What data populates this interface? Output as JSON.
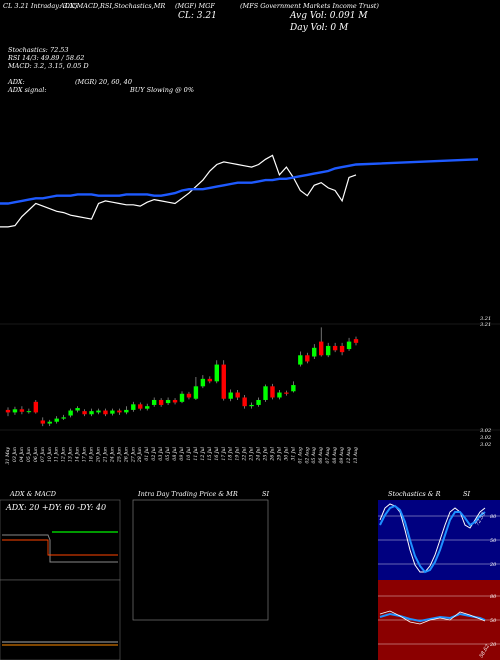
{
  "header": {
    "line1_left": "CL 3.21 Intraday: 3.15",
    "line1_mid1": "ADX,MACD,RSI,Stochastics,MR",
    "line1_mid2": "(MGF) MGF",
    "line1_right": "(MFS Government Markets Income Trust)",
    "close": "CL: 3.21",
    "avg_vol": "Avg Vol: 0.091 M",
    "day_vol": "Day Vol: 0   M",
    "stoch": "Stochastics: 72.53",
    "rsi": "RSI 14/3: 49.89 / 58.62",
    "macd": "MACD: 3.2, 3.15, 0.05 D",
    "adx": "ADX:",
    "adx_signal": "ADX  signal:",
    "mgr": "(MGR) 20, 60, 40",
    "buy_slowing": "BUY Slowing @ 0%"
  },
  "price_labels": {
    "p1": "3.21",
    "p2": "3.21",
    "p3": "3.02",
    "p4": "3.02",
    "p5": "3.02"
  },
  "x_labels": [
    "31 May",
    "03 Jun",
    "04 Jun",
    "05 Jun",
    "06 Jun",
    "07 Jun",
    "10 Jun",
    "11 Jun",
    "12 Jun",
    "13 Jun",
    "14 Jun",
    "17 Jun",
    "18 Jun",
    "20 Jun",
    "21 Jun",
    "24 Jun",
    "25 Jun",
    "26 Jun",
    "27 Jun",
    "28 Jun",
    "01 Jul",
    "02 Jul",
    "03 Jul",
    "05 Jul",
    "08 Jul",
    "09 Jul",
    "10 Jul",
    "11 Jul",
    "12 Jul",
    "15 Jul",
    "16 Jul",
    "17 Jul",
    "18 Jul",
    "19 Jul",
    "22 Jul",
    "23 Jul",
    "24 Jul",
    "25 Jul",
    "26 Jul",
    "29 Jul",
    "30 Jul",
    "31 Jul",
    "01 Aug",
    "02 Aug",
    "05 Aug",
    "06 Aug",
    "07 Aug",
    "08 Aug",
    "09 Aug",
    "12 Aug",
    "13 Aug"
  ],
  "panels": {
    "adx_title": "ADX  & MACD",
    "adx_values": "ADX: 20  +DY: 60  -DY: 40",
    "mr_title": "Intra  Day Trading Price  & MR",
    "mr_si": "SI",
    "stoch_title": "Stochastics & R",
    "stoch_si": "SI",
    "stoch_ticks": [
      "80",
      "50",
      "20"
    ],
    "rsi_ticks": [
      "80",
      "50",
      "20"
    ],
    "stoch_value": "72.53",
    "rsi_value": "58.62"
  },
  "colors": {
    "up": "#00ff00",
    "down": "#ff0000",
    "ma": "#1e5aff",
    "stoch_bg": "#000080",
    "rsi_bg": "#8b0000"
  },
  "chart_data": {
    "type": "candlestick",
    "ylim": [
      3.02,
      3.21
    ],
    "candles": [
      {
        "o": 3.062,
        "c": 3.058,
        "h": 3.066,
        "l": 3.052
      },
      {
        "o": 3.058,
        "c": 3.063,
        "h": 3.067,
        "l": 3.054
      },
      {
        "o": 3.063,
        "c": 3.059,
        "h": 3.068,
        "l": 3.055
      },
      {
        "o": 3.059,
        "c": 3.06,
        "h": 3.064,
        "l": 3.056
      },
      {
        "o": 3.075,
        "c": 3.058,
        "h": 3.078,
        "l": 3.056
      },
      {
        "o": 3.045,
        "c": 3.04,
        "h": 3.05,
        "l": 3.036
      },
      {
        "o": 3.04,
        "c": 3.043,
        "h": 3.046,
        "l": 3.036
      },
      {
        "o": 3.043,
        "c": 3.048,
        "h": 3.052,
        "l": 3.04
      },
      {
        "o": 3.048,
        "c": 3.05,
        "h": 3.054,
        "l": 3.046
      },
      {
        "o": 3.053,
        "c": 3.061,
        "h": 3.064,
        "l": 3.05
      },
      {
        "o": 3.061,
        "c": 3.065,
        "h": 3.068,
        "l": 3.058
      },
      {
        "o": 3.06,
        "c": 3.055,
        "h": 3.063,
        "l": 3.052
      },
      {
        "o": 3.055,
        "c": 3.06,
        "h": 3.064,
        "l": 3.052
      },
      {
        "o": 3.058,
        "c": 3.061,
        "h": 3.064,
        "l": 3.055
      },
      {
        "o": 3.061,
        "c": 3.055,
        "h": 3.064,
        "l": 3.052
      },
      {
        "o": 3.056,
        "c": 3.061,
        "h": 3.064,
        "l": 3.053
      },
      {
        "o": 3.061,
        "c": 3.058,
        "h": 3.064,
        "l": 3.054
      },
      {
        "o": 3.058,
        "c": 3.062,
        "h": 3.068,
        "l": 3.055
      },
      {
        "o": 3.062,
        "c": 3.071,
        "h": 3.075,
        "l": 3.059
      },
      {
        "o": 3.071,
        "c": 3.064,
        "h": 3.074,
        "l": 3.061
      },
      {
        "o": 3.064,
        "c": 3.068,
        "h": 3.072,
        "l": 3.061
      },
      {
        "o": 3.07,
        "c": 3.078,
        "h": 3.082,
        "l": 3.067
      },
      {
        "o": 3.078,
        "c": 3.07,
        "h": 3.081,
        "l": 3.067
      },
      {
        "o": 3.073,
        "c": 3.078,
        "h": 3.082,
        "l": 3.07
      },
      {
        "o": 3.078,
        "c": 3.074,
        "h": 3.081,
        "l": 3.071
      },
      {
        "o": 3.075,
        "c": 3.088,
        "h": 3.092,
        "l": 3.073
      },
      {
        "o": 3.088,
        "c": 3.082,
        "h": 3.091,
        "l": 3.079
      },
      {
        "o": 3.08,
        "c": 3.1,
        "h": 3.115,
        "l": 3.078
      },
      {
        "o": 3.1,
        "c": 3.112,
        "h": 3.118,
        "l": 3.097
      },
      {
        "o": 3.112,
        "c": 3.108,
        "h": 3.116,
        "l": 3.105
      },
      {
        "o": 3.108,
        "c": 3.135,
        "h": 3.142,
        "l": 3.105
      },
      {
        "o": 3.135,
        "c": 3.08,
        "h": 3.142,
        "l": 3.077
      },
      {
        "o": 3.08,
        "c": 3.09,
        "h": 3.095,
        "l": 3.076
      },
      {
        "o": 3.09,
        "c": 3.082,
        "h": 3.094,
        "l": 3.078
      },
      {
        "o": 3.082,
        "c": 3.068,
        "h": 3.086,
        "l": 3.064
      },
      {
        "o": 3.068,
        "c": 3.07,
        "h": 3.074,
        "l": 3.064
      },
      {
        "o": 3.07,
        "c": 3.078,
        "h": 3.082,
        "l": 3.067
      },
      {
        "o": 3.078,
        "c": 3.1,
        "h": 3.103,
        "l": 3.075
      },
      {
        "o": 3.1,
        "c": 3.082,
        "h": 3.104,
        "l": 3.079
      },
      {
        "o": 3.082,
        "c": 3.09,
        "h": 3.094,
        "l": 3.079
      },
      {
        "o": 3.09,
        "c": 3.088,
        "h": 3.093,
        "l": 3.085
      },
      {
        "o": 3.092,
        "c": 3.102,
        "h": 3.108,
        "l": 3.09
      },
      {
        "o": 3.135,
        "c": 3.15,
        "h": 3.156,
        "l": 3.132
      },
      {
        "o": 3.15,
        "c": 3.14,
        "h": 3.154,
        "l": 3.137
      },
      {
        "o": 3.148,
        "c": 3.162,
        "h": 3.168,
        "l": 3.144
      },
      {
        "o": 3.172,
        "c": 3.15,
        "h": 3.195,
        "l": 3.148
      },
      {
        "o": 3.15,
        "c": 3.165,
        "h": 3.17,
        "l": 3.147
      },
      {
        "o": 3.165,
        "c": 3.158,
        "h": 3.17,
        "l": 3.155
      },
      {
        "o": 3.165,
        "c": 3.155,
        "h": 3.17,
        "l": 3.15
      },
      {
        "o": 3.16,
        "c": 3.172,
        "h": 3.178,
        "l": 3.157
      },
      {
        "o": 3.176,
        "c": 3.17,
        "h": 3.18,
        "l": 3.166
      }
    ],
    "price_line": [
      3.082,
      3.083,
      3.09,
      3.095,
      3.1,
      3.098,
      3.096,
      3.094,
      3.093,
      3.091,
      3.09,
      3.089,
      3.088,
      3.1,
      3.102,
      3.101,
      3.1,
      3.099,
      3.099,
      3.098,
      3.101,
      3.103,
      3.102,
      3.101,
      3.1,
      3.104,
      3.108,
      3.113,
      3.118,
      3.125,
      3.13,
      3.132,
      3.131,
      3.13,
      3.129,
      3.128,
      3.13,
      3.134,
      3.137,
      3.122,
      3.128,
      3.12,
      3.11,
      3.106,
      3.114,
      3.116,
      3.112,
      3.11,
      3.102,
      3.12,
      3.122
    ],
    "ma_line": [
      3.1,
      3.101,
      3.102,
      3.103,
      3.104,
      3.104,
      3.105,
      3.106,
      3.106,
      3.106,
      3.107,
      3.107,
      3.107,
      3.106,
      3.106,
      3.106,
      3.106,
      3.107,
      3.107,
      3.107,
      3.107,
      3.106,
      3.106,
      3.107,
      3.108,
      3.11,
      3.111,
      3.111,
      3.111,
      3.112,
      3.113,
      3.114,
      3.115,
      3.116,
      3.116,
      3.116,
      3.117,
      3.118,
      3.118,
      3.119,
      3.119,
      3.12,
      3.121,
      3.122,
      3.123,
      3.124,
      3.125,
      3.127,
      3.128,
      3.129,
      3.13
    ]
  }
}
